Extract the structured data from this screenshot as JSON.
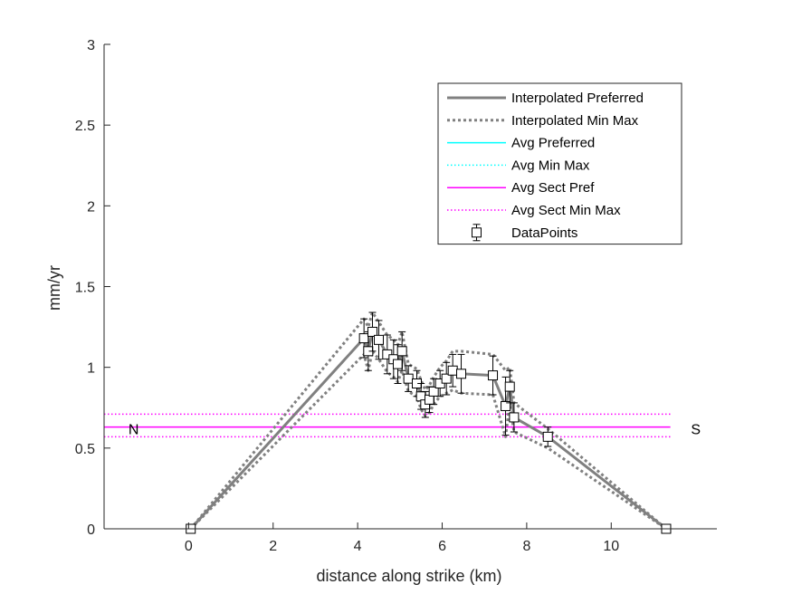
{
  "chart_data": {
    "type": "line",
    "xlabel": "distance along strike (km)",
    "ylabel": "mm/yr",
    "xlim": [
      -2,
      12.5
    ],
    "ylim": [
      0,
      3
    ],
    "xticks": [
      0,
      2,
      4,
      6,
      8,
      10
    ],
    "yticks": [
      0,
      0.5,
      1,
      1.5,
      2,
      2.5,
      3
    ],
    "xtick_labels": [
      "0",
      "2",
      "4",
      "6",
      "8",
      "10"
    ],
    "ytick_labels": [
      "0",
      "0.5",
      "1",
      "1.5",
      "2",
      "2.5",
      "3"
    ],
    "grid": false,
    "legend_position": "top-right",
    "annotations": [
      {
        "text": "N",
        "x": -1.3,
        "y": 0.62
      },
      {
        "text": "S",
        "x": 12.0,
        "y": 0.62
      }
    ],
    "series": [
      {
        "name": "Interpolated Preferred",
        "style": "solid-thick",
        "color": "#808080",
        "x": [
          0.05,
          4.15,
          4.25,
          4.35,
          4.5,
          4.7,
          4.85,
          4.95,
          5.05,
          5.2,
          5.4,
          5.5,
          5.6,
          5.7,
          5.8,
          5.95,
          6.1,
          6.25,
          6.45,
          7.2,
          7.5,
          7.6,
          7.7,
          8.5,
          11.3
        ],
        "y": [
          0,
          1.18,
          1.1,
          1.22,
          1.17,
          1.08,
          1.05,
          1.02,
          1.1,
          0.93,
          0.9,
          0.82,
          0.77,
          0.8,
          0.85,
          0.9,
          0.93,
          0.98,
          0.96,
          0.95,
          0.76,
          0.88,
          0.69,
          0.57,
          0
        ]
      },
      {
        "name": "Interpolated Min Max",
        "style": "dotted-thick",
        "color": "#808080",
        "x": [
          0.05,
          4.15,
          4.25,
          4.35,
          4.5,
          4.7,
          4.85,
          4.95,
          5.05,
          5.2,
          5.4,
          5.5,
          5.6,
          5.7,
          5.8,
          5.95,
          6.1,
          6.25,
          6.45,
          7.2,
          7.5,
          7.6,
          7.7,
          8.5,
          11.3
        ],
        "y": [
          0,
          1.3,
          1.25,
          1.34,
          1.28,
          1.2,
          1.17,
          1.14,
          1.22,
          1.02,
          0.99,
          0.92,
          0.86,
          0.89,
          0.94,
          1.0,
          1.04,
          1.1,
          1.1,
          1.08,
          0.98,
          1.0,
          0.78,
          0.62,
          0
        ],
        "y_lower": [
          0,
          1.08,
          0.98,
          1.1,
          1.05,
          0.97,
          0.94,
          0.91,
          0.98,
          0.85,
          0.82,
          0.74,
          0.7,
          0.72,
          0.77,
          0.82,
          0.84,
          0.86,
          0.84,
          0.83,
          0.57,
          0.78,
          0.6,
          0.5,
          0
        ]
      },
      {
        "name": "Avg Preferred",
        "style": "solid",
        "color": "#00ffff",
        "y": null
      },
      {
        "name": "Avg Min Max",
        "style": "dotted",
        "color": "#00ffff",
        "y": null
      },
      {
        "name": "Avg Sect Pref",
        "style": "solid",
        "color": "#ff00ff",
        "x": [
          -2,
          11.4
        ],
        "y": [
          0.63,
          0.63
        ]
      },
      {
        "name": "Avg Sect Min Max",
        "style": "dotted",
        "color": "#ff00ff",
        "x": [
          -2,
          11.4
        ],
        "y": [
          0.71,
          0.71
        ],
        "y_lower": [
          0.57,
          0.57
        ]
      },
      {
        "name": "DataPoints",
        "style": "square-markers-errorbars",
        "color": "#000000",
        "x": [
          0.05,
          4.15,
          4.25,
          4.35,
          4.5,
          4.7,
          4.85,
          4.95,
          5.05,
          5.2,
          5.4,
          5.5,
          5.6,
          5.7,
          5.8,
          5.95,
          6.1,
          6.25,
          6.45,
          7.2,
          7.5,
          7.6,
          7.7,
          8.5,
          11.3
        ],
        "y": [
          0,
          1.18,
          1.1,
          1.22,
          1.17,
          1.08,
          1.05,
          1.02,
          1.1,
          0.93,
          0.9,
          0.82,
          0.77,
          0.8,
          0.85,
          0.9,
          0.93,
          0.98,
          0.96,
          0.95,
          0.76,
          0.88,
          0.69,
          0.57,
          0
        ],
        "err": [
          0,
          0.12,
          0.12,
          0.12,
          0.12,
          0.12,
          0.12,
          0.12,
          0.12,
          0.08,
          0.08,
          0.08,
          0.08,
          0.08,
          0.08,
          0.08,
          0.1,
          0.1,
          0.12,
          0.12,
          0.18,
          0.1,
          0.09,
          0.06,
          0
        ]
      }
    ]
  }
}
